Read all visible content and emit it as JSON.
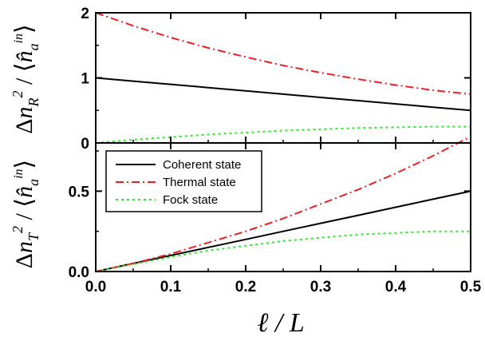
{
  "chart_data": [
    {
      "type": "line",
      "panel": "top",
      "ylabel": "Δn_R² / ⟨n̂_a^in⟩",
      "xlim": [
        0,
        0.5
      ],
      "ylim": [
        0,
        2
      ],
      "y_ticks": [
        "0",
        "1",
        "2"
      ],
      "x": [
        0.0,
        0.05,
        0.1,
        0.15,
        0.2,
        0.25,
        0.3,
        0.35,
        0.4,
        0.45,
        0.5
      ],
      "series": [
        {
          "name": "Coherent state",
          "color": "#000000",
          "dash": "solid",
          "values": [
            1.0,
            0.95,
            0.9,
            0.85,
            0.8,
            0.75,
            0.7,
            0.65,
            0.6,
            0.55,
            0.5
          ]
        },
        {
          "name": "Thermal state",
          "color": "#e8202a",
          "dash": "dashdot",
          "values": [
            2.0,
            1.8,
            1.62,
            1.46,
            1.32,
            1.19,
            1.08,
            0.98,
            0.89,
            0.81,
            0.75
          ]
        },
        {
          "name": "Fock state",
          "color": "#33e633",
          "dash": "dot",
          "values": [
            0.0,
            0.05,
            0.09,
            0.13,
            0.16,
            0.19,
            0.21,
            0.23,
            0.24,
            0.25,
            0.25
          ]
        }
      ]
    },
    {
      "type": "line",
      "panel": "bottom",
      "ylabel": "Δn_T² / ⟨n̂_a^in⟩",
      "xlabel": "ℓ / L",
      "xlim": [
        0,
        0.5
      ],
      "ylim": [
        0,
        0.8
      ],
      "x_ticks": [
        "0.0",
        "0.1",
        "0.2",
        "0.3",
        "0.4",
        "0.5"
      ],
      "y_ticks": [
        "0.0",
        "0.5"
      ],
      "x": [
        0.0,
        0.05,
        0.1,
        0.15,
        0.2,
        0.25,
        0.3,
        0.35,
        0.4,
        0.45,
        0.5
      ],
      "legend_position": "top-left",
      "series": [
        {
          "name": "Coherent state",
          "color": "#000000",
          "dash": "solid",
          "values": [
            0.0,
            0.05,
            0.1,
            0.15,
            0.2,
            0.25,
            0.3,
            0.35,
            0.4,
            0.45,
            0.5
          ]
        },
        {
          "name": "Thermal state",
          "color": "#e8202a",
          "dash": "dashdot",
          "values": [
            0.0,
            0.05,
            0.11,
            0.18,
            0.25,
            0.33,
            0.42,
            0.51,
            0.61,
            0.72,
            0.84
          ]
        },
        {
          "name": "Fock state",
          "color": "#33e633",
          "dash": "dot",
          "values": [
            0.0,
            0.045,
            0.09,
            0.13,
            0.16,
            0.19,
            0.21,
            0.23,
            0.24,
            0.25,
            0.25
          ]
        }
      ]
    }
  ],
  "legend": {
    "items": [
      "Coherent state",
      "Thermal state",
      "Fock state"
    ]
  }
}
